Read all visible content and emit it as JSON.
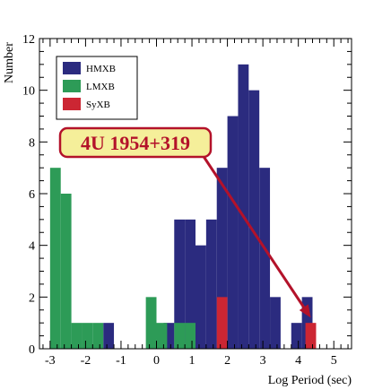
{
  "chart_data": {
    "type": "bar",
    "xlabel": "Log Period (sec)",
    "ylabel": "Number",
    "xlim": [
      -3.3,
      5.5
    ],
    "ylim": [
      0,
      12
    ],
    "bin_width": 0.3,
    "x_ticks": [
      -3,
      -2,
      -1,
      0,
      1,
      2,
      3,
      4,
      5
    ],
    "x_tick_labels": [
      "-3",
      "-2",
      "-1",
      "0",
      "1",
      "2",
      "3",
      "4",
      "5"
    ],
    "y_ticks": [
      0,
      2,
      4,
      6,
      8,
      10,
      12
    ],
    "y_tick_labels": [
      "0",
      "2",
      "4",
      "6",
      "8",
      "10",
      "12"
    ],
    "series": [
      {
        "name": "HMXB",
        "color": "#2b2b7f",
        "bins": [
          {
            "x0": -1.5,
            "x1": -1.2,
            "value": 1
          },
          {
            "x0": 0.2,
            "x1": 0.5,
            "value": 1
          },
          {
            "x0": 0.5,
            "x1": 0.8,
            "value": 5
          },
          {
            "x0": 0.8,
            "x1": 1.1,
            "value": 5
          },
          {
            "x0": 1.1,
            "x1": 1.4,
            "value": 4
          },
          {
            "x0": 1.4,
            "x1": 1.7,
            "value": 5
          },
          {
            "x0": 1.7,
            "x1": 2.0,
            "value": 7
          },
          {
            "x0": 2.0,
            "x1": 2.3,
            "value": 9
          },
          {
            "x0": 2.3,
            "x1": 2.6,
            "value": 11
          },
          {
            "x0": 2.6,
            "x1": 2.9,
            "value": 10
          },
          {
            "x0": 2.9,
            "x1": 3.2,
            "value": 7
          },
          {
            "x0": 3.2,
            "x1": 3.5,
            "value": 2
          },
          {
            "x0": 3.8,
            "x1": 4.1,
            "value": 1
          },
          {
            "x0": 4.1,
            "x1": 4.4,
            "value": 2
          }
        ]
      },
      {
        "name": "LMXB",
        "color": "#2d9b57",
        "bins": [
          {
            "x0": -3.0,
            "x1": -2.7,
            "value": 7
          },
          {
            "x0": -2.7,
            "x1": -2.4,
            "value": 6
          },
          {
            "x0": -2.4,
            "x1": -2.1,
            "value": 1
          },
          {
            "x0": -2.1,
            "x1": -1.8,
            "value": 1
          },
          {
            "x0": -1.8,
            "x1": -1.5,
            "value": 1
          },
          {
            "x0": -0.3,
            "x1": 0.0,
            "value": 2
          },
          {
            "x0": 0.0,
            "x1": 0.3,
            "value": 1
          },
          {
            "x0": 0.5,
            "x1": 0.8,
            "value": 1
          },
          {
            "x0": 0.8,
            "x1": 1.1,
            "value": 1
          }
        ]
      },
      {
        "name": "SyXB",
        "color": "#cc2633",
        "bins": [
          {
            "x0": 1.7,
            "x1": 2.0,
            "value": 2
          },
          {
            "x0": 4.2,
            "x1": 4.5,
            "value": 1
          }
        ]
      }
    ],
    "legend_placement": "top-left",
    "annotation": {
      "text": "4U 1954+319",
      "arrow_to": {
        "x": 4.35,
        "y": 1.2
      },
      "box_fill": "#f5ef9a",
      "box_stroke": "#b3122a"
    }
  }
}
